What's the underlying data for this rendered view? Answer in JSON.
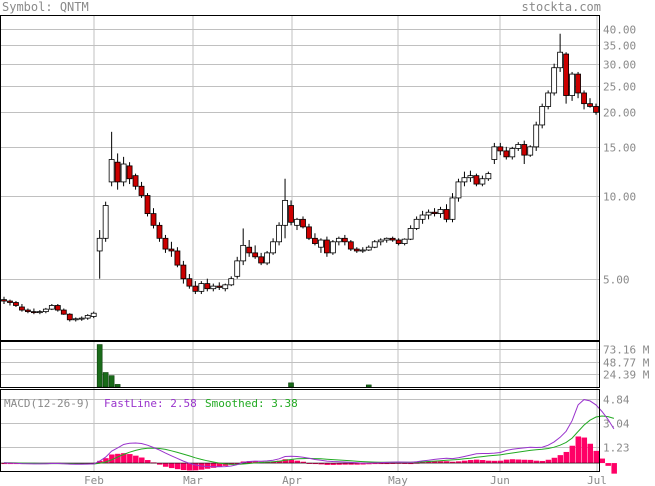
{
  "header": {
    "symbol_label": "Symbol:",
    "symbol": "QNTM",
    "brand": "stockta.com"
  },
  "chart_data": {
    "type": "candlestick",
    "symbol": "QNTM",
    "x_ticks": [
      "Feb",
      "Mar",
      "Apr",
      "May",
      "Jun",
      "Jul"
    ],
    "price_axis": {
      "scale": "log",
      "ticks": [
        "40.00",
        "35.00",
        "30.00",
        "25.00",
        "20.00",
        "15.00",
        "10.00",
        "5.00"
      ],
      "tick_values": [
        40,
        35,
        30,
        25,
        20,
        15,
        10,
        5
      ],
      "range": [
        3.0,
        45
      ]
    },
    "candles": [
      {
        "o": 4.2,
        "h": 4.3,
        "l": 4.05,
        "c": 4.15
      },
      {
        "o": 4.15,
        "h": 4.2,
        "l": 4.0,
        "c": 4.1
      },
      {
        "o": 4.1,
        "h": 4.15,
        "l": 3.95,
        "c": 4.0
      },
      {
        "o": 3.95,
        "h": 4.05,
        "l": 3.8,
        "c": 3.85
      },
      {
        "o": 3.85,
        "h": 3.9,
        "l": 3.75,
        "c": 3.8
      },
      {
        "o": 3.8,
        "h": 3.9,
        "l": 3.72,
        "c": 3.78
      },
      {
        "o": 3.78,
        "h": 3.85,
        "l": 3.72,
        "c": 3.8
      },
      {
        "o": 3.8,
        "h": 3.92,
        "l": 3.75,
        "c": 3.88
      },
      {
        "o": 3.88,
        "h": 4.05,
        "l": 3.85,
        "c": 4.0
      },
      {
        "o": 4.0,
        "h": 4.05,
        "l": 3.8,
        "c": 3.85
      },
      {
        "o": 3.85,
        "h": 3.9,
        "l": 3.7,
        "c": 3.72
      },
      {
        "o": 3.72,
        "h": 3.75,
        "l": 3.5,
        "c": 3.55
      },
      {
        "o": 3.55,
        "h": 3.62,
        "l": 3.5,
        "c": 3.58
      },
      {
        "o": 3.58,
        "h": 3.65,
        "l": 3.52,
        "c": 3.6
      },
      {
        "o": 3.6,
        "h": 3.72,
        "l": 3.55,
        "c": 3.68
      },
      {
        "o": 3.65,
        "h": 3.8,
        "l": 3.6,
        "c": 3.75
      },
      {
        "o": 6.3,
        "h": 7.5,
        "l": 5.0,
        "c": 7.0
      },
      {
        "o": 7.0,
        "h": 9.5,
        "l": 6.8,
        "c": 9.2
      },
      {
        "o": 11.2,
        "h": 17.0,
        "l": 10.8,
        "c": 13.5
      },
      {
        "o": 13.2,
        "h": 14.2,
        "l": 10.5,
        "c": 11.2
      },
      {
        "o": 11.2,
        "h": 13.8,
        "l": 10.8,
        "c": 13.0
      },
      {
        "o": 12.8,
        "h": 13.2,
        "l": 11.0,
        "c": 11.5
      },
      {
        "o": 11.8,
        "h": 12.0,
        "l": 10.5,
        "c": 10.8
      },
      {
        "o": 10.8,
        "h": 11.2,
        "l": 9.8,
        "c": 10.0
      },
      {
        "o": 10.0,
        "h": 10.2,
        "l": 8.4,
        "c": 8.6
      },
      {
        "o": 8.6,
        "h": 9.0,
        "l": 7.6,
        "c": 7.8
      },
      {
        "o": 7.8,
        "h": 8.0,
        "l": 6.8,
        "c": 7.0
      },
      {
        "o": 7.0,
        "h": 7.2,
        "l": 6.2,
        "c": 6.4
      },
      {
        "o": 6.4,
        "h": 6.8,
        "l": 6.0,
        "c": 6.3
      },
      {
        "o": 6.3,
        "h": 6.5,
        "l": 5.5,
        "c": 5.6
      },
      {
        "o": 5.6,
        "h": 5.8,
        "l": 4.8,
        "c": 5.0
      },
      {
        "o": 5.0,
        "h": 5.2,
        "l": 4.6,
        "c": 4.7
      },
      {
        "o": 4.7,
        "h": 4.9,
        "l": 4.4,
        "c": 4.5
      },
      {
        "o": 4.5,
        "h": 4.9,
        "l": 4.4,
        "c": 4.8
      },
      {
        "o": 4.8,
        "h": 5.0,
        "l": 4.5,
        "c": 4.6
      },
      {
        "o": 4.6,
        "h": 4.8,
        "l": 4.5,
        "c": 4.7
      },
      {
        "o": 4.7,
        "h": 4.85,
        "l": 4.55,
        "c": 4.65
      },
      {
        "o": 4.6,
        "h": 4.8,
        "l": 4.5,
        "c": 4.75
      },
      {
        "o": 4.75,
        "h": 5.1,
        "l": 4.7,
        "c": 5.0
      },
      {
        "o": 5.1,
        "h": 6.0,
        "l": 5.0,
        "c": 5.8
      },
      {
        "o": 5.8,
        "h": 7.6,
        "l": 5.6,
        "c": 6.6
      },
      {
        "o": 6.5,
        "h": 6.9,
        "l": 6.0,
        "c": 6.2
      },
      {
        "o": 6.2,
        "h": 6.6,
        "l": 5.9,
        "c": 6.0
      },
      {
        "o": 6.0,
        "h": 6.2,
        "l": 5.6,
        "c": 5.7
      },
      {
        "o": 5.7,
        "h": 6.3,
        "l": 5.6,
        "c": 6.2
      },
      {
        "o": 6.2,
        "h": 7.0,
        "l": 6.1,
        "c": 6.8
      },
      {
        "o": 6.8,
        "h": 8.0,
        "l": 6.6,
        "c": 7.8
      },
      {
        "o": 7.8,
        "h": 11.5,
        "l": 7.0,
        "c": 9.6
      },
      {
        "o": 9.2,
        "h": 9.6,
        "l": 7.8,
        "c": 8.0
      },
      {
        "o": 7.8,
        "h": 8.3,
        "l": 7.5,
        "c": 8.2
      },
      {
        "o": 8.2,
        "h": 8.4,
        "l": 7.6,
        "c": 7.7
      },
      {
        "o": 7.7,
        "h": 7.9,
        "l": 6.9,
        "c": 7.0
      },
      {
        "o": 7.0,
        "h": 7.3,
        "l": 6.6,
        "c": 6.7
      },
      {
        "o": 6.5,
        "h": 7.0,
        "l": 6.2,
        "c": 6.9
      },
      {
        "o": 6.9,
        "h": 7.1,
        "l": 6.0,
        "c": 6.2
      },
      {
        "o": 6.2,
        "h": 6.9,
        "l": 6.1,
        "c": 6.8
      },
      {
        "o": 6.8,
        "h": 7.1,
        "l": 6.6,
        "c": 7.0
      },
      {
        "o": 7.0,
        "h": 7.2,
        "l": 6.6,
        "c": 6.8
      },
      {
        "o": 6.8,
        "h": 6.9,
        "l": 6.3,
        "c": 6.4
      },
      {
        "o": 6.4,
        "h": 6.5,
        "l": 6.2,
        "c": 6.3
      },
      {
        "o": 6.3,
        "h": 6.5,
        "l": 6.2,
        "c": 6.35
      },
      {
        "o": 6.35,
        "h": 6.6,
        "l": 6.3,
        "c": 6.5
      },
      {
        "o": 6.5,
        "h": 6.9,
        "l": 6.45,
        "c": 6.8
      },
      {
        "o": 6.8,
        "h": 7.0,
        "l": 6.6,
        "c": 6.9
      },
      {
        "o": 6.9,
        "h": 7.05,
        "l": 6.75,
        "c": 7.0
      },
      {
        "o": 7.0,
        "h": 7.1,
        "l": 6.8,
        "c": 6.9
      },
      {
        "o": 6.9,
        "h": 7.0,
        "l": 6.6,
        "c": 6.7
      },
      {
        "o": 6.7,
        "h": 7.0,
        "l": 6.6,
        "c": 6.95
      },
      {
        "o": 6.95,
        "h": 7.8,
        "l": 6.9,
        "c": 7.6
      },
      {
        "o": 7.6,
        "h": 8.4,
        "l": 7.5,
        "c": 8.2
      },
      {
        "o": 8.2,
        "h": 8.8,
        "l": 7.9,
        "c": 8.5
      },
      {
        "o": 8.5,
        "h": 8.9,
        "l": 8.2,
        "c": 8.7
      },
      {
        "o": 8.7,
        "h": 9.0,
        "l": 8.4,
        "c": 8.6
      },
      {
        "o": 8.6,
        "h": 9.1,
        "l": 8.3,
        "c": 8.9
      },
      {
        "o": 8.9,
        "h": 9.3,
        "l": 8.0,
        "c": 8.2
      },
      {
        "o": 8.2,
        "h": 10.2,
        "l": 8.0,
        "c": 9.8
      },
      {
        "o": 9.8,
        "h": 11.5,
        "l": 9.5,
        "c": 11.2
      },
      {
        "o": 11.2,
        "h": 12.2,
        "l": 10.8,
        "c": 11.6
      },
      {
        "o": 11.6,
        "h": 12.3,
        "l": 11.2,
        "c": 11.8
      },
      {
        "o": 11.8,
        "h": 12.0,
        "l": 10.8,
        "c": 11.0
      },
      {
        "o": 11.0,
        "h": 11.8,
        "l": 10.8,
        "c": 11.5
      },
      {
        "o": 11.5,
        "h": 12.2,
        "l": 11.3,
        "c": 12.0
      },
      {
        "o": 13.5,
        "h": 15.5,
        "l": 13.0,
        "c": 15.0
      },
      {
        "o": 15.0,
        "h": 15.5,
        "l": 14.0,
        "c": 14.5
      },
      {
        "o": 14.5,
        "h": 15.0,
        "l": 13.5,
        "c": 13.8
      },
      {
        "o": 13.8,
        "h": 15.0,
        "l": 13.5,
        "c": 14.8
      },
      {
        "o": 14.8,
        "h": 15.6,
        "l": 14.5,
        "c": 15.3
      },
      {
        "o": 15.3,
        "h": 15.8,
        "l": 13.0,
        "c": 14.0
      },
      {
        "o": 14.0,
        "h": 15.2,
        "l": 13.8,
        "c": 15.0
      },
      {
        "o": 15.0,
        "h": 18.5,
        "l": 14.5,
        "c": 18.0
      },
      {
        "o": 18.0,
        "h": 21.5,
        "l": 17.5,
        "c": 21.0
      },
      {
        "o": 21.0,
        "h": 24.0,
        "l": 20.5,
        "c": 23.5
      },
      {
        "o": 23.5,
        "h": 30.0,
        "l": 23.0,
        "c": 29.0
      },
      {
        "o": 29.0,
        "h": 38.5,
        "l": 28.0,
        "c": 33.0
      },
      {
        "o": 32.5,
        "h": 33.0,
        "l": 21.5,
        "c": 23.0
      },
      {
        "o": 23.0,
        "h": 28.0,
        "l": 22.0,
        "c": 27.5
      },
      {
        "o": 27.5,
        "h": 28.0,
        "l": 22.5,
        "c": 23.5
      },
      {
        "o": 23.5,
        "h": 24.0,
        "l": 20.5,
        "c": 21.5
      },
      {
        "o": 21.5,
        "h": 22.5,
        "l": 20.8,
        "c": 21.0
      },
      {
        "o": 21.0,
        "h": 21.5,
        "l": 19.6,
        "c": 20.0
      }
    ],
    "volume_axis": {
      "ticks": [
        "73.16 M",
        "48.77 M",
        "24.39 M"
      ],
      "tick_values": [
        73.16,
        48.77,
        24.39
      ],
      "max": 85,
      "unit": "M"
    },
    "volume_bars": [
      {
        "candle": 16,
        "v": 82
      },
      {
        "candle": 17,
        "v": 28
      },
      {
        "candle": 18,
        "v": 22
      },
      {
        "candle": 19,
        "v": 5
      },
      {
        "candle": 48,
        "v": 8
      },
      {
        "candle": 61,
        "v": 4
      }
    ],
    "macd": {
      "label": "MACD(12-26-9)",
      "fast_label": "FastLine:",
      "fast_value": "2.58",
      "smooth_label": "Smoothed:",
      "smooth_value": "3.38",
      "ticks": [
        "4.84",
        "3.04",
        "1.23"
      ],
      "tick_values": [
        4.84,
        3.04,
        1.23
      ],
      "range": [
        -0.6,
        5.6
      ],
      "fast_line": [
        0.02,
        0.0,
        -0.02,
        -0.04,
        -0.05,
        -0.06,
        -0.06,
        -0.05,
        -0.03,
        -0.03,
        -0.05,
        -0.08,
        -0.09,
        -0.09,
        -0.08,
        -0.06,
        0.15,
        0.45,
        0.9,
        1.15,
        1.4,
        1.5,
        1.52,
        1.48,
        1.35,
        1.18,
        0.98,
        0.75,
        0.55,
        0.35,
        0.15,
        -0.02,
        -0.15,
        -0.22,
        -0.26,
        -0.28,
        -0.28,
        -0.27,
        -0.22,
        -0.12,
        0.05,
        0.12,
        0.15,
        0.14,
        0.16,
        0.22,
        0.32,
        0.5,
        0.52,
        0.5,
        0.44,
        0.36,
        0.27,
        0.22,
        0.15,
        0.12,
        0.1,
        0.08,
        0.05,
        0.02,
        0.0,
        0.0,
        0.01,
        0.03,
        0.05,
        0.07,
        0.08,
        0.07,
        0.06,
        0.1,
        0.16,
        0.22,
        0.28,
        0.32,
        0.36,
        0.34,
        0.4,
        0.5,
        0.6,
        0.7,
        0.72,
        0.72,
        0.75,
        0.8,
        0.95,
        1.05,
        1.1,
        1.15,
        1.2,
        1.18,
        1.2,
        1.35,
        1.6,
        1.95,
        2.4,
        3.2,
        4.4,
        4.8,
        4.7,
        4.4,
        3.9,
        3.3,
        2.58
      ],
      "smooth_line": [
        0.03,
        0.02,
        0.01,
        0.0,
        -0.01,
        -0.02,
        -0.03,
        -0.04,
        -0.04,
        -0.04,
        -0.04,
        -0.05,
        -0.06,
        -0.07,
        -0.07,
        -0.07,
        -0.02,
        0.08,
        0.25,
        0.45,
        0.65,
        0.82,
        0.96,
        1.06,
        1.12,
        1.13,
        1.1,
        1.03,
        0.93,
        0.81,
        0.68,
        0.54,
        0.4,
        0.28,
        0.17,
        0.08,
        0.0,
        -0.06,
        -0.09,
        -0.1,
        -0.07,
        -0.03,
        0.01,
        0.04,
        0.07,
        0.1,
        0.14,
        0.21,
        0.27,
        0.32,
        0.34,
        0.35,
        0.34,
        0.32,
        0.29,
        0.26,
        0.23,
        0.2,
        0.17,
        0.14,
        0.11,
        0.09,
        0.07,
        0.06,
        0.06,
        0.06,
        0.06,
        0.06,
        0.06,
        0.07,
        0.09,
        0.12,
        0.15,
        0.18,
        0.22,
        0.24,
        0.27,
        0.32,
        0.37,
        0.44,
        0.49,
        0.54,
        0.58,
        0.62,
        0.69,
        0.76,
        0.83,
        0.9,
        0.96,
        1.0,
        1.04,
        1.1,
        1.2,
        1.35,
        1.56,
        1.89,
        2.39,
        2.87,
        3.24,
        3.48,
        3.56,
        3.51,
        3.38
      ]
    },
    "colors": {
      "up_candle": "#ffffff",
      "down_candle": "#cc0000",
      "volume_bar": "#1a6b1a",
      "fast_line": "#9933cc",
      "smooth_line": "#22aa22",
      "histogram": "#ff0066",
      "grid": "#c0c0c0",
      "text": "#8a8a8a"
    }
  }
}
